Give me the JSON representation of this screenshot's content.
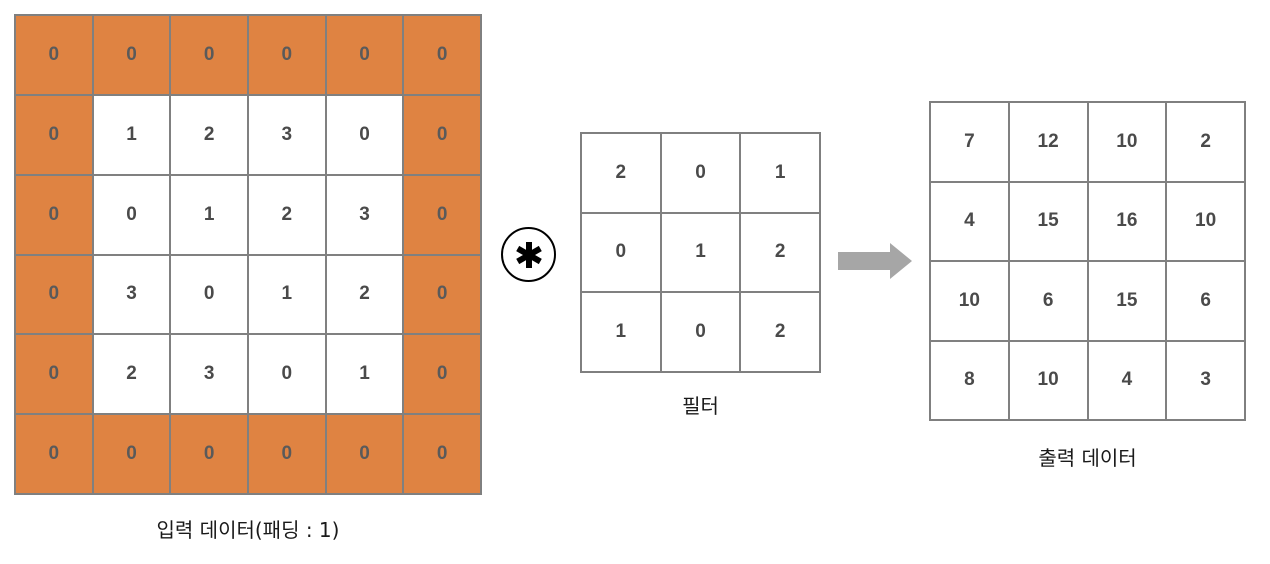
{
  "input": {
    "caption": "입력 데이터(패딩 : 1)",
    "padding": 1,
    "rows": [
      [
        "0",
        "0",
        "0",
        "0",
        "0",
        "0"
      ],
      [
        "0",
        "1",
        "2",
        "3",
        "0",
        "0"
      ],
      [
        "0",
        "0",
        "1",
        "2",
        "3",
        "0"
      ],
      [
        "0",
        "3",
        "0",
        "1",
        "2",
        "0"
      ],
      [
        "0",
        "2",
        "3",
        "0",
        "1",
        "0"
      ],
      [
        "0",
        "0",
        "0",
        "0",
        "0",
        "0"
      ]
    ]
  },
  "operator": {
    "icon": "convolution-asterisk-icon"
  },
  "filter": {
    "caption": "필터",
    "rows": [
      [
        "2",
        "0",
        "1"
      ],
      [
        "0",
        "1",
        "2"
      ],
      [
        "1",
        "0",
        "2"
      ]
    ]
  },
  "arrow": {
    "icon": "right-arrow-icon",
    "color": "#a6a6a6"
  },
  "output": {
    "caption": "출력 데이터",
    "rows": [
      [
        "7",
        "12",
        "10",
        "2"
      ],
      [
        "4",
        "15",
        "16",
        "10"
      ],
      [
        "10",
        "6",
        "15",
        "6"
      ],
      [
        "8",
        "10",
        "4",
        "3"
      ]
    ]
  },
  "colors": {
    "padding_cell": "#df8342",
    "grid_line": "#808080",
    "cell_text": "#4a4a4a"
  }
}
